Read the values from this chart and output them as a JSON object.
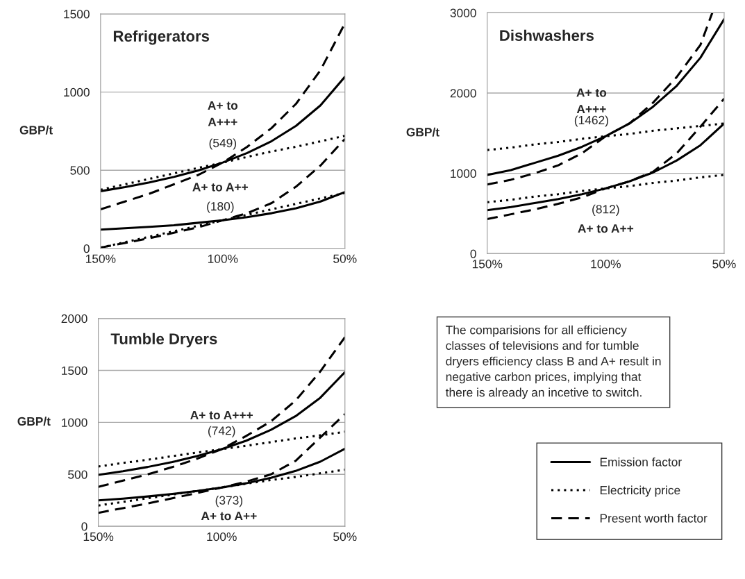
{
  "chart_data": [
    {
      "type": "line",
      "title": "Refrigerators",
      "ylabel": "GBP/t",
      "x": [
        150,
        140,
        130,
        120,
        110,
        100,
        90,
        80,
        70,
        60,
        50
      ],
      "xlim": [
        150,
        50
      ],
      "xticks": [
        {
          "value": 150,
          "label": "150%"
        },
        {
          "value": 100,
          "label": "100%"
        },
        {
          "value": 50,
          "label": "50%"
        }
      ],
      "ylim": [
        0,
        1500
      ],
      "yticks": [
        0,
        500,
        1000,
        1500
      ],
      "grid": "y",
      "legend": "bottom right",
      "series": [
        {
          "name": "Emission factor",
          "color": "#000000",
          "line_style": "solid",
          "values": [
            366,
            392,
            422,
            457,
            499,
            549,
            610,
            686,
            784,
            915,
            1098
          ]
        },
        {
          "name": "Electricity price",
          "color": "#000000",
          "line_style": "dotted",
          "values": [
            375,
            410,
            445,
            480,
            515,
            549,
            585,
            620,
            650,
            685,
            720
          ]
        },
        {
          "name": "Present worth factor",
          "color": "#000000",
          "line_style": "dashed",
          "values": [
            250,
            300,
            350,
            410,
            470,
            549,
            650,
            770,
            925,
            1140,
            1440
          ]
        },
        {
          "color": "#000000",
          "line_style": "solid",
          "values": [
            120,
            129,
            138,
            148,
            164,
            180,
            200,
            225,
            257,
            300,
            360
          ]
        },
        {
          "color": "#000000",
          "line_style": "dotted",
          "values": [
            5,
            40,
            75,
            110,
            145,
            180,
            215,
            250,
            285,
            320,
            355
          ]
        },
        {
          "color": "#000000",
          "line_style": "dashed",
          "values": [
            5,
            35,
            65,
            100,
            135,
            180,
            225,
            290,
            395,
            530,
            700
          ]
        }
      ],
      "annotations": [
        "A+ to\nA+++",
        "(549)",
        "A+ to A++",
        "(180)"
      ]
    },
    {
      "type": "line",
      "title": "Dishwashers",
      "ylabel": "GBP/t",
      "x": [
        150,
        140,
        130,
        120,
        110,
        100,
        90,
        80,
        70,
        60,
        50
      ],
      "xlim": [
        150,
        50
      ],
      "xticks": [
        {
          "value": 150,
          "label": "150%"
        },
        {
          "value": 100,
          "label": "100%"
        },
        {
          "value": 50,
          "label": "50%"
        }
      ],
      "ylim": [
        0,
        3000
      ],
      "yticks": [
        0,
        1000,
        2000,
        3000
      ],
      "grid": "y",
      "series": [
        {
          "color": "#000000",
          "line_style": "solid",
          "values": [
            980,
            1040,
            1130,
            1220,
            1330,
            1462,
            1620,
            1830,
            2090,
            2440,
            2920
          ]
        },
        {
          "color": "#000000",
          "line_style": "dotted",
          "values": [
            1290,
            1320,
            1360,
            1390,
            1430,
            1462,
            1490,
            1530,
            1560,
            1590,
            1620
          ]
        },
        {
          "color": "#000000",
          "line_style": "dashed",
          "x": [
            150,
            140,
            130,
            120,
            110,
            100,
            90,
            80,
            70,
            60,
            55
          ],
          "values": [
            860,
            920,
            1000,
            1100,
            1250,
            1462,
            1620,
            1880,
            2200,
            2600,
            3000
          ]
        },
        {
          "color": "#000000",
          "line_style": "solid",
          "values": [
            540,
            580,
            630,
            680,
            740,
            812,
            900,
            1010,
            1160,
            1350,
            1620
          ]
        },
        {
          "color": "#000000",
          "line_style": "dotted",
          "values": [
            640,
            670,
            710,
            740,
            780,
            812,
            840,
            880,
            910,
            950,
            980
          ]
        },
        {
          "color": "#000000",
          "line_style": "dashed",
          "values": [
            430,
            490,
            550,
            620,
            700,
            812,
            900,
            1020,
            1250,
            1580,
            1930
          ]
        }
      ],
      "annotations": [
        "A+ to\nA+++",
        "(1462)",
        "(812)",
        "A+ to A++"
      ]
    },
    {
      "type": "line",
      "title": "Tumble Dryers",
      "ylabel": "GBP/t",
      "x": [
        150,
        140,
        130,
        120,
        110,
        100,
        90,
        80,
        70,
        60,
        50
      ],
      "xlim": [
        150,
        50
      ],
      "xticks": [
        {
          "value": 150,
          "label": "150%"
        },
        {
          "value": 100,
          "label": "100%"
        },
        {
          "value": 50,
          "label": "50%"
        }
      ],
      "ylim": [
        0,
        2000
      ],
      "yticks": [
        0,
        500,
        1000,
        1500,
        2000
      ],
      "grid": "y",
      "series": [
        {
          "color": "#000000",
          "line_style": "solid",
          "values": [
            495,
            530,
            571,
            618,
            675,
            742,
            824,
            928,
            1060,
            1237,
            1484
          ]
        },
        {
          "color": "#000000",
          "line_style": "dotted",
          "values": [
            575,
            610,
            640,
            675,
            710,
            742,
            775,
            810,
            845,
            875,
            910
          ]
        },
        {
          "color": "#000000",
          "line_style": "dashed",
          "values": [
            380,
            440,
            500,
            570,
            650,
            742,
            870,
            1010,
            1210,
            1490,
            1820
          ]
        },
        {
          "color": "#000000",
          "line_style": "solid",
          "values": [
            249,
            266,
            287,
            311,
            339,
            373,
            414,
            466,
            533,
            622,
            746
          ]
        },
        {
          "color": "#000000",
          "line_style": "dotted",
          "values": [
            200,
            235,
            270,
            305,
            340,
            373,
            410,
            445,
            475,
            510,
            545
          ]
        },
        {
          "color": "#000000",
          "line_style": "dashed",
          "values": [
            130,
            175,
            220,
            270,
            320,
            373,
            430,
            500,
            630,
            855,
            1080
          ]
        }
      ],
      "annotations": [
        "A+ to A+++",
        "(742)",
        "(373)",
        "A+ to A++"
      ]
    },
    {
      "type": "other",
      "annotations": [
        "The comparisions for all efficiency\nclasses of televisions and for tumble\ndryers efficiency class B and A+ result in\nnegative carbon prices, implying that\nthere is already an incetive to switch."
      ]
    }
  ]
}
